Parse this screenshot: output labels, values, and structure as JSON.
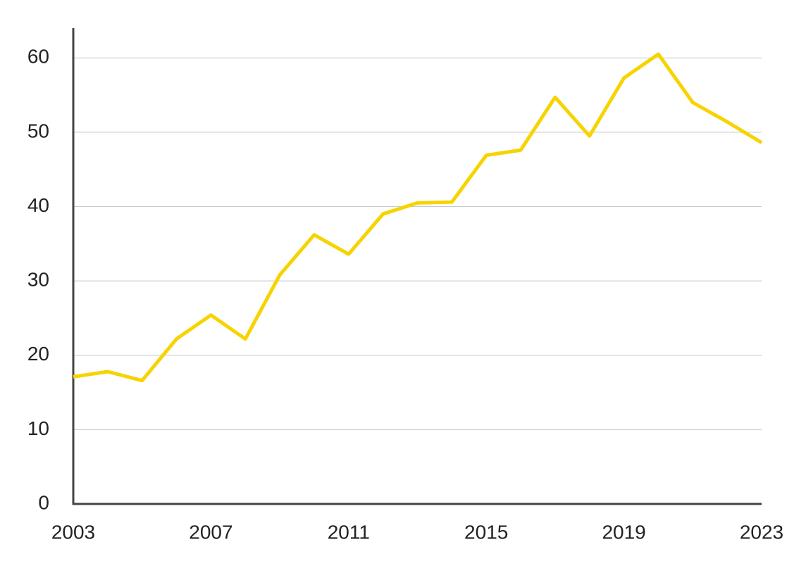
{
  "chart_data": {
    "type": "line",
    "x": [
      2003,
      2004,
      2005,
      2006,
      2007,
      2008,
      2009,
      2010,
      2011,
      2012,
      2013,
      2014,
      2015,
      2016,
      2017,
      2018,
      2019,
      2020,
      2021,
      2022,
      2023
    ],
    "series": [
      {
        "color": "#f7d300",
        "values": [
          17.1,
          17.8,
          16.6,
          22.2,
          25.4,
          22.2,
          30.8,
          36.2,
          33.6,
          39.0,
          40.5,
          40.6,
          46.9,
          47.6,
          54.7,
          49.5,
          57.3,
          60.5,
          54.0,
          51.4,
          48.6
        ]
      }
    ],
    "xlim": [
      2003,
      2023
    ],
    "xticks": [
      2003,
      2007,
      2011,
      2015,
      2019,
      2023
    ],
    "ylim": [
      0,
      64
    ],
    "yticks": [
      0,
      10,
      20,
      30,
      40,
      50,
      60
    ],
    "grid": true
  }
}
